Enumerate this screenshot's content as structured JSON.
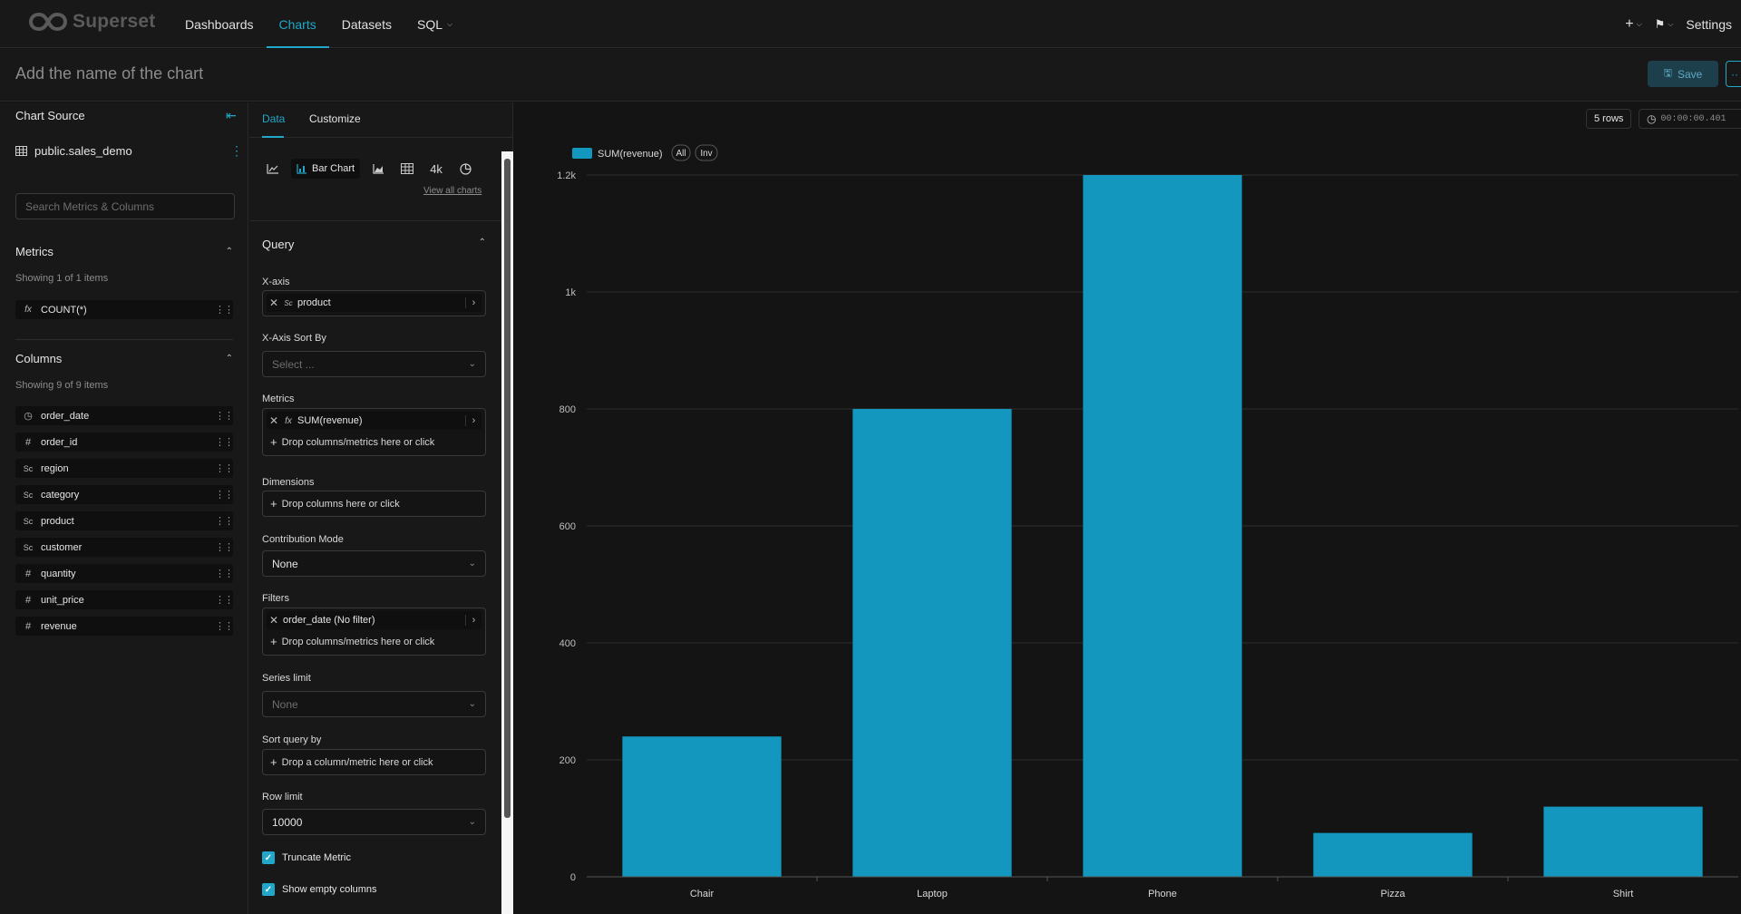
{
  "nav": {
    "logo": "Superset",
    "items": [
      "Dashboards",
      "Charts",
      "Datasets",
      "SQL"
    ],
    "active": "Charts",
    "settings": "Settings"
  },
  "title": {
    "placeholder": "Add the name of the chart",
    "save": "Save"
  },
  "source": {
    "title": "Chart Source",
    "dataset": "public.sales_demo",
    "search_placeholder": "Search Metrics & Columns",
    "metrics_title": "Metrics",
    "metrics_showing": "Showing 1 of 1 items",
    "metrics": [
      {
        "icon": "fx",
        "label": "COUNT(*)"
      }
    ],
    "columns_title": "Columns",
    "columns_showing": "Showing 9 of 9 items",
    "columns": [
      {
        "icon": "clock",
        "label": "order_date"
      },
      {
        "icon": "#",
        "label": "order_id"
      },
      {
        "icon": "abc",
        "label": "region"
      },
      {
        "icon": "abc",
        "label": "category"
      },
      {
        "icon": "abc",
        "label": "product"
      },
      {
        "icon": "abc",
        "label": "customer"
      },
      {
        "icon": "#",
        "label": "quantity"
      },
      {
        "icon": "#",
        "label": "unit_price"
      },
      {
        "icon": "#",
        "label": "revenue"
      }
    ]
  },
  "panel": {
    "tab_data": "Data",
    "tab_customize": "Customize",
    "viz_selected": "Bar Chart",
    "viz_big_number": "4k",
    "view_all": "View all charts",
    "query_title": "Query",
    "xaxis_label": "X-axis",
    "xaxis_value": "product",
    "xsort_label": "X-Axis Sort By",
    "xsort_placeholder": "Select ...",
    "metrics_label": "Metrics",
    "metric_value": "SUM(revenue)",
    "drop_metrics": "Drop columns/metrics here or click",
    "dimensions_label": "Dimensions",
    "drop_columns": "Drop columns here or click",
    "contribution_label": "Contribution Mode",
    "contribution_value": "None",
    "filters_label": "Filters",
    "filter_value": "order_date (No filter)",
    "drop_filters": "Drop columns/metrics here or click",
    "series_limit_label": "Series limit",
    "series_limit_value": "None",
    "sort_query_label": "Sort query by",
    "drop_sort": "Drop a column/metric here or click",
    "row_limit_label": "Row limit",
    "row_limit_value": "10000",
    "truncate_metric": "Truncate Metric",
    "show_empty": "Show empty columns"
  },
  "chart_meta": {
    "rows": "5 rows",
    "timer": "00:00:00.401",
    "legend_all": "All",
    "legend_inv": "Inv"
  },
  "colors": {
    "accent": "#20a7c9",
    "bar": "#1497be"
  },
  "chart_data": {
    "type": "bar",
    "categories": [
      "Chair",
      "Laptop",
      "Phone",
      "Pizza",
      "Shirt"
    ],
    "series": [
      {
        "name": "SUM(revenue)",
        "values": [
          240,
          800,
          1200,
          75,
          120
        ]
      }
    ],
    "ylim": [
      0,
      1200
    ],
    "yticks": [
      0,
      200,
      400,
      600,
      800,
      1000,
      1200
    ],
    "ytick_labels": [
      "0",
      "200",
      "400",
      "600",
      "800",
      "1k",
      "1.2k"
    ],
    "grid": true,
    "legend": "top-left"
  }
}
